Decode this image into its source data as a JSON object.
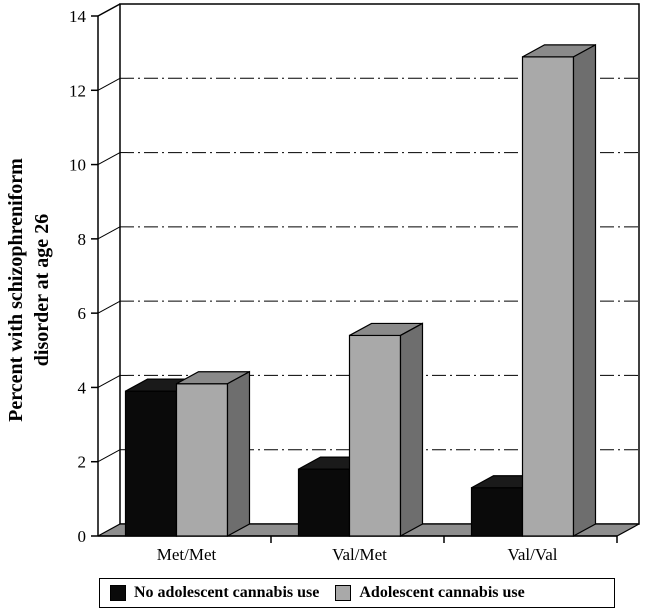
{
  "chart_data": {
    "type": "bar",
    "title": "",
    "xlabel": "",
    "ylabel_lines": [
      "Percent with schizophreniform",
      "disorder at age 26"
    ],
    "categories": [
      "Met/Met",
      "Val/Met",
      "Val/Val"
    ],
    "series": [
      {
        "name": "No adolescent cannabis use",
        "color": "#0a0a0a",
        "side": "#1a1a1a",
        "top": "#1a1a1a",
        "values": [
          3.9,
          1.8,
          1.3
        ]
      },
      {
        "name": "Adolescent cannabis use",
        "color": "#a9a9a9",
        "side": "#6e6e6e",
        "top": "#8a8a8a",
        "values": [
          4.1,
          5.4,
          12.9
        ]
      }
    ],
    "ylim": [
      0,
      14
    ],
    "yticks": [
      "0",
      "2",
      "4",
      "6",
      "8",
      "10",
      "12",
      "14"
    ],
    "grid": "dash-dot horizontal",
    "style": "3d",
    "legend_position": "bottom"
  }
}
